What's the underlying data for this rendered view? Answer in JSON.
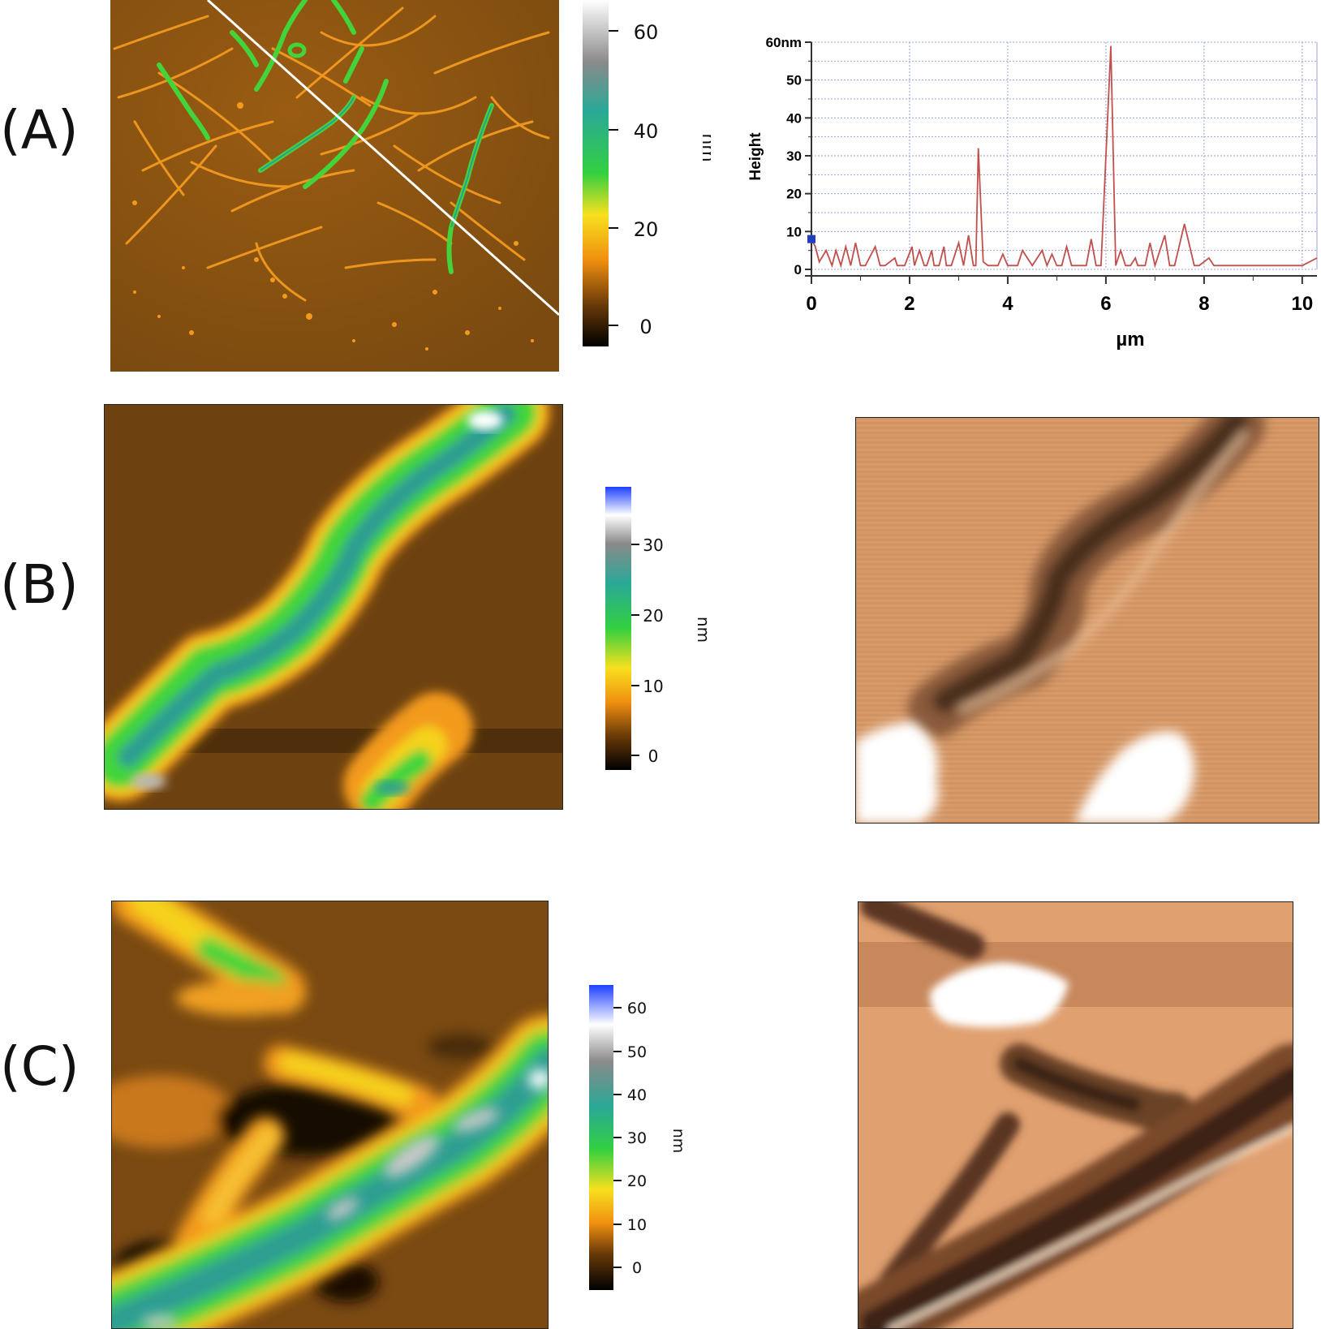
{
  "panels": {
    "a": {
      "label": "(A)"
    },
    "b": {
      "label": "(B)"
    },
    "c": {
      "label": "(C)"
    }
  },
  "colorbars": {
    "a": {
      "ticks": [
        "60",
        "40",
        "20",
        "0"
      ],
      "unit": "nm"
    },
    "b": {
      "ticks": [
        "30",
        "20",
        "10",
        "0"
      ],
      "unit": "nm"
    },
    "c": {
      "ticks": [
        "60",
        "50",
        "40",
        "30",
        "20",
        "10",
        "0"
      ],
      "unit": "nm"
    }
  },
  "colors": {
    "afm_background": "#7a4a10",
    "fiber_orange": "#f39a1e",
    "fiber_green": "#43d43b",
    "fiber_teal": "#2f9e92",
    "amplitude_background": "#d99a68",
    "profile_line": "#c0504d",
    "profile_marker": "#1f3fbf"
  },
  "chart_data": {
    "type": "line",
    "title": "",
    "xlabel": "µm",
    "ylabel": "Height",
    "xlim": [
      0,
      10.3
    ],
    "ylim": [
      0,
      60
    ],
    "x_ticks": [
      "0",
      "2",
      "4",
      "6",
      "8",
      "10"
    ],
    "y_ticks": [
      "0",
      "10",
      "20",
      "30",
      "40",
      "50",
      "60nm"
    ],
    "grid": true,
    "marker_point": [
      0,
      8
    ],
    "series": [
      {
        "x": [
          0,
          0.08,
          0.16,
          0.3,
          0.42,
          0.5,
          0.6,
          0.7,
          0.8,
          0.9,
          1.0,
          1.1,
          1.3,
          1.4,
          1.5,
          1.7,
          1.75,
          1.8,
          1.9,
          2.05,
          2.1,
          2.2,
          2.3,
          2.35,
          2.45,
          2.5,
          2.6,
          2.7,
          2.75,
          2.85,
          3.0,
          3.1,
          3.2,
          3.3,
          3.35,
          3.4,
          3.5,
          3.6,
          3.65,
          3.7,
          3.8,
          3.9,
          4.0,
          4.2,
          4.3,
          4.5,
          4.7,
          4.8,
          4.9,
          5.0,
          5.1,
          5.2,
          5.3,
          5.4,
          5.6,
          5.7,
          5.8,
          5.9,
          6.1,
          6.2,
          6.3,
          6.4,
          6.5,
          6.6,
          6.65,
          6.7,
          6.8,
          6.9,
          7.0,
          7.2,
          7.3,
          7.4,
          7.6,
          7.8,
          7.85,
          7.9,
          8.1,
          8.2,
          8.3,
          8.5,
          8.7,
          8.8,
          8.9,
          9.1,
          9.2,
          9.3,
          9.6,
          9.8,
          10.0,
          10.3
        ],
        "values": [
          8,
          6,
          2,
          5,
          1,
          5,
          1,
          6,
          1,
          7,
          1,
          1,
          6,
          1,
          1,
          3,
          1,
          1,
          1,
          6,
          1,
          5,
          1,
          1,
          5,
          1,
          1,
          6,
          1,
          1,
          7,
          1,
          9,
          1,
          1,
          32,
          2,
          1,
          1,
          1,
          1,
          4,
          1,
          1,
          5,
          1,
          5,
          1,
          4,
          1,
          1,
          6,
          1,
          1,
          1,
          8,
          1,
          1,
          59,
          1,
          5,
          1,
          1,
          3,
          1,
          1,
          1,
          7,
          1,
          9,
          1,
          1,
          12,
          1,
          1,
          1,
          3,
          1,
          1,
          1,
          1,
          1,
          1,
          1,
          1,
          1,
          1,
          1,
          1,
          3
        ]
      }
    ]
  }
}
